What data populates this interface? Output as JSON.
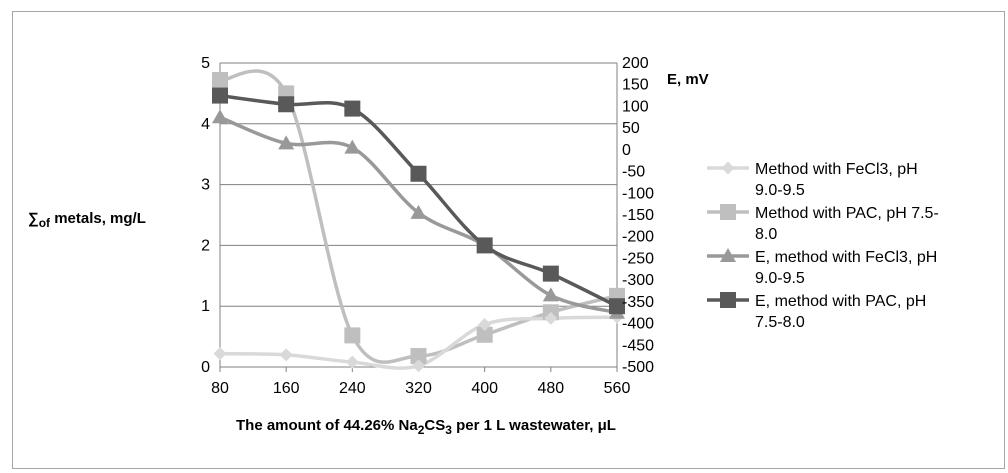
{
  "chart_data": {
    "type": "line",
    "x": [
      "80",
      "160",
      "240",
      "320",
      "400",
      "480",
      "560"
    ],
    "xlabel": {
      "pre": "The amount of 44.26% Na",
      "sub1": "2",
      "mid": "CS",
      "sub2": "3",
      "post": " per 1 L wastewater, μL"
    },
    "ylabel_left": {
      "sym": "∑",
      "sub": "of",
      "rest": " metals, mg/L"
    },
    "ylabel_right": "E, mV",
    "ylim_left": [
      0,
      5
    ],
    "ylim_right": [
      -500,
      200
    ],
    "yticks_left": [
      "0",
      "1",
      "2",
      "3",
      "4",
      "5"
    ],
    "yticks_right": [
      "-500",
      "-450",
      "-400",
      "-350",
      "-300",
      "-250",
      "-200",
      "-150",
      "-100",
      "-50",
      "0",
      "50",
      "100",
      "150",
      "200"
    ],
    "grid": true,
    "legend_position": "right",
    "series": [
      {
        "name_lines": [
          "Method with FeCl3, pH",
          "9.0-9.5"
        ],
        "axis": "left",
        "marker": "diamond",
        "color": "#d9d9d9",
        "values": [
          0.22,
          0.2,
          0.08,
          0.02,
          0.7,
          0.8,
          0.82
        ]
      },
      {
        "name_lines": [
          "Method with PAC, pH 7.5-",
          "8.0"
        ],
        "axis": "left",
        "marker": "square",
        "color": "#bfbfbf",
        "values": [
          4.72,
          4.5,
          0.52,
          0.18,
          0.53,
          0.9,
          1.17
        ]
      },
      {
        "name_lines": [
          "E, method with FeCl3, pH",
          "9.0-9.5"
        ],
        "axis": "right",
        "marker": "triangle",
        "color": "#999999",
        "values": [
          75,
          15,
          5,
          -145,
          -220,
          -335,
          -375
        ]
      },
      {
        "name_lines": [
          "E, method with PAC, pH",
          "7.5-8.0"
        ],
        "axis": "right",
        "marker": "square",
        "color": "#595959",
        "values": [
          125,
          105,
          95,
          -55,
          -220,
          -285,
          -360
        ]
      }
    ]
  }
}
